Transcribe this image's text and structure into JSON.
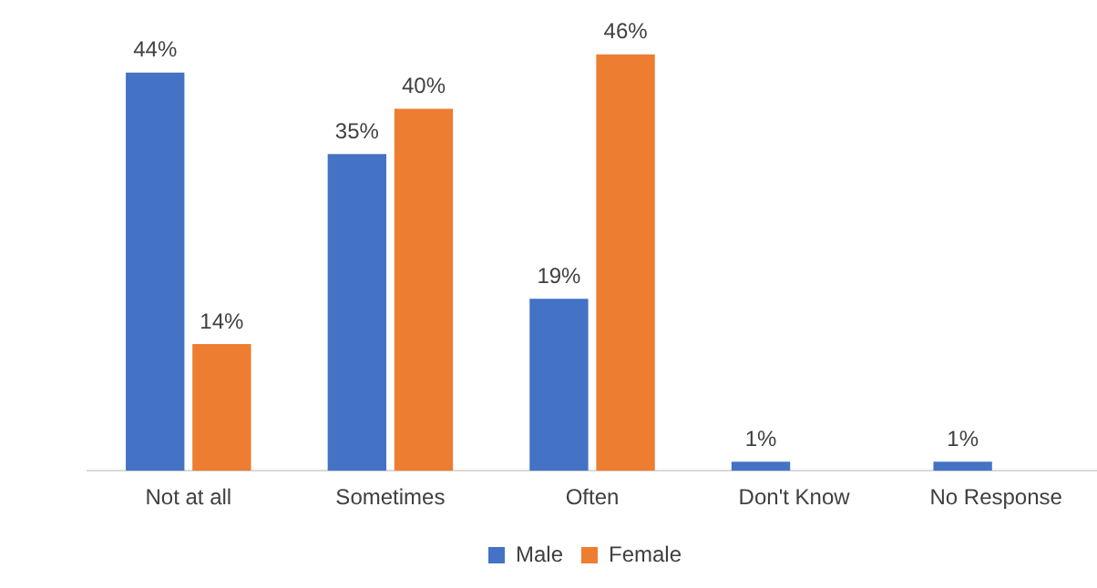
{
  "chart_data": {
    "type": "bar",
    "categories": [
      "Not at all",
      "Sometimes",
      "Often",
      "Don't Know",
      "No Response"
    ],
    "series": [
      {
        "name": "Male",
        "color": "#4472c4",
        "values": [
          44,
          35,
          19,
          1,
          1
        ],
        "value_labels": [
          "44%",
          "35%",
          "19%",
          "1%",
          "1%"
        ]
      },
      {
        "name": "Female",
        "color": "#ed7d31",
        "values": [
          14,
          40,
          46,
          null,
          null
        ],
        "value_labels": [
          "14%",
          "40%",
          "46%",
          null,
          null
        ]
      }
    ],
    "relative": false,
    "grid": false,
    "legend": "bottom"
  }
}
